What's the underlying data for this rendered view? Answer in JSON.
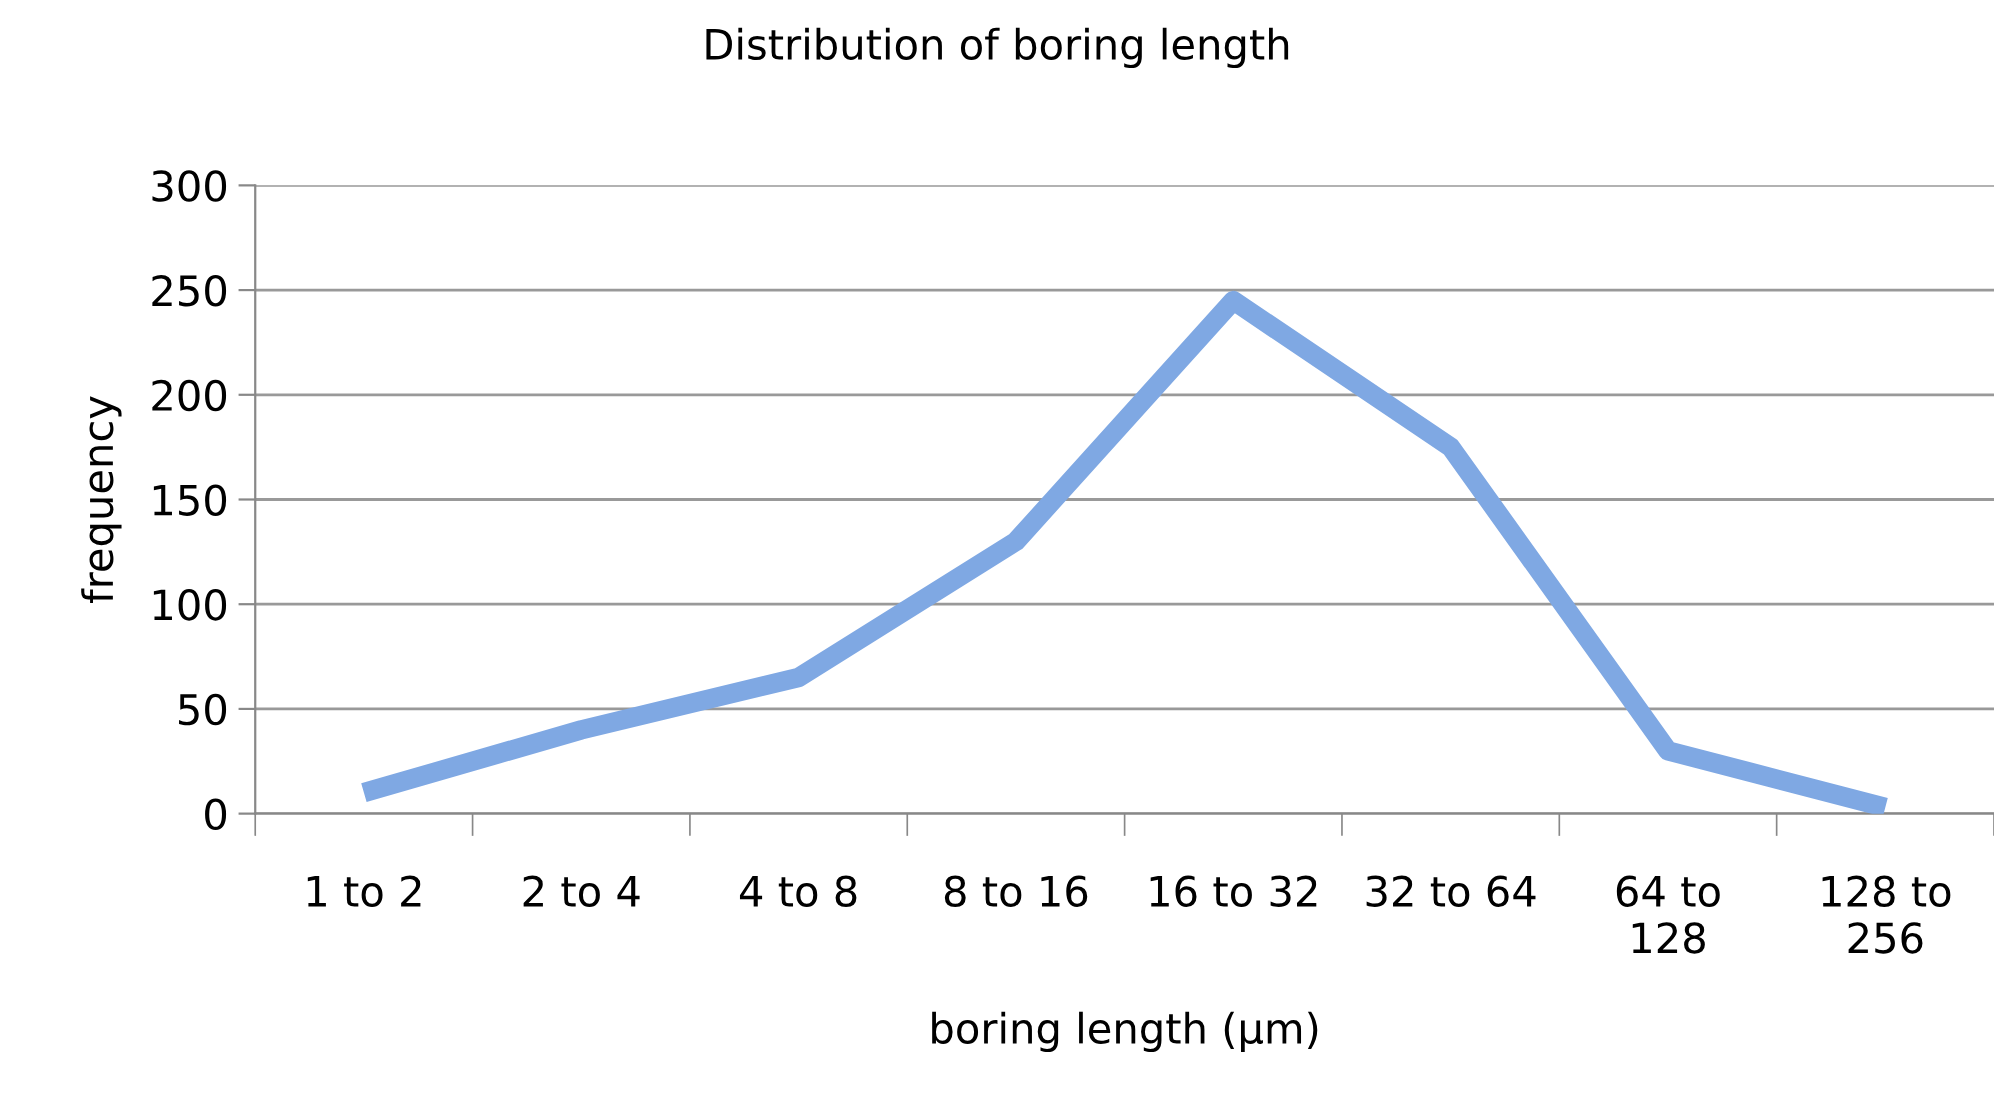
{
  "chart_data": {
    "type": "line",
    "title": "Distribution of boring length",
    "xlabel": "boring length (µm)",
    "ylabel": "frequency",
    "categories": [
      "1 to 2",
      "2 to 4",
      "4 to 8",
      "8 to 16",
      "16 to 32",
      "32 to 64",
      "64 to\n128",
      "128 to\n256"
    ],
    "series": [
      {
        "color": "#7fa8e3",
        "values": [
          10,
          40,
          65,
          130,
          245,
          175,
          30,
          3
        ]
      }
    ],
    "ylim": [
      0,
      300
    ],
    "yticks": [
      0,
      50,
      100,
      150,
      200,
      250,
      300
    ],
    "grid": "y",
    "legend": false,
    "marker": "none",
    "line_style": "solid"
  }
}
